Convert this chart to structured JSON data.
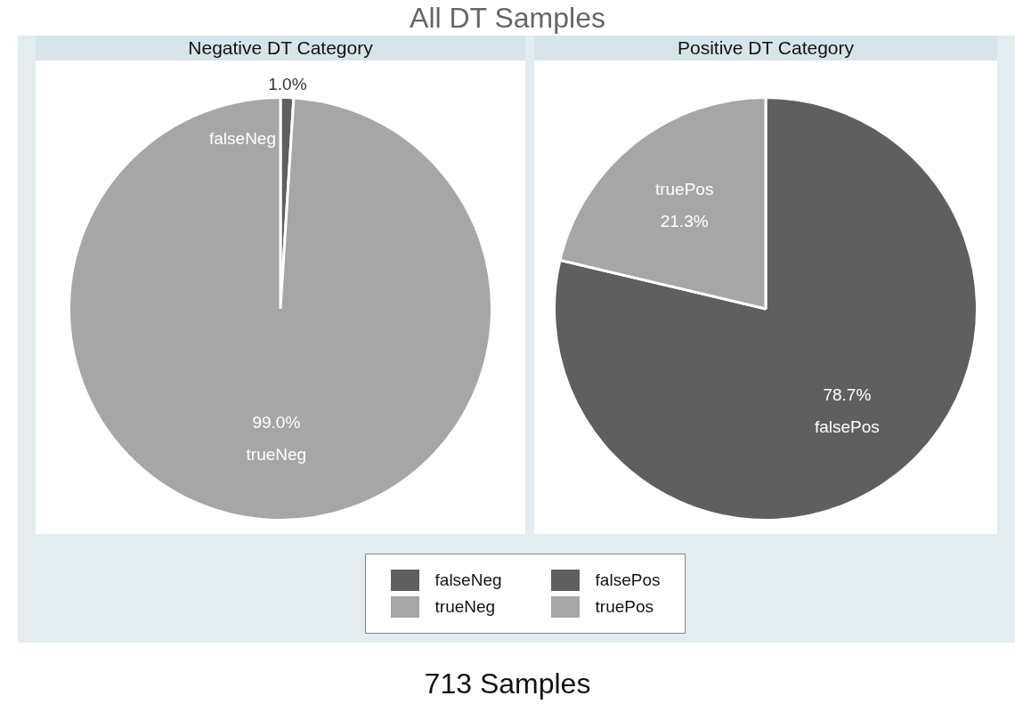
{
  "chart_data": [
    {
      "type": "other",
      "title": "All DT Samples",
      "annotations": [
        "713 Samples"
      ]
    },
    {
      "type": "pie",
      "title": "Negative DT Category",
      "categories": [
        "falseNeg",
        "trueNeg"
      ],
      "values": [
        1.0,
        99.0
      ],
      "value_labels": [
        "1.0%",
        "99.0%"
      ],
      "colors": [
        "#5f5f5f",
        "#a6a6a6"
      ],
      "legend": "bottom"
    },
    {
      "type": "pie",
      "title": "Positive DT Category",
      "categories": [
        "falsePos",
        "truePos"
      ],
      "values": [
        78.7,
        21.3
      ],
      "value_labels": [
        "78.7%",
        "21.3%"
      ],
      "colors": [
        "#5f5f5f",
        "#a6a6a6"
      ],
      "legend": "bottom"
    }
  ]
}
